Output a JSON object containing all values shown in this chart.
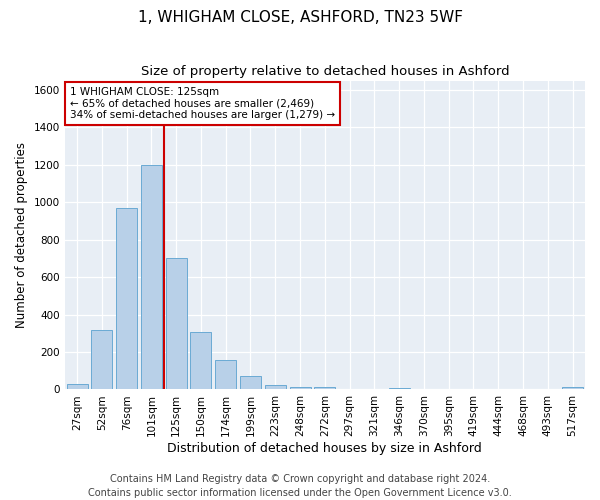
{
  "title": "1, WHIGHAM CLOSE, ASHFORD, TN23 5WF",
  "subtitle": "Size of property relative to detached houses in Ashford",
  "xlabel": "Distribution of detached houses by size in Ashford",
  "ylabel": "Number of detached properties",
  "bar_labels": [
    "27sqm",
    "52sqm",
    "76sqm",
    "101sqm",
    "125sqm",
    "150sqm",
    "174sqm",
    "199sqm",
    "223sqm",
    "248sqm",
    "272sqm",
    "297sqm",
    "321sqm",
    "346sqm",
    "370sqm",
    "395sqm",
    "419sqm",
    "444sqm",
    "468sqm",
    "493sqm",
    "517sqm"
  ],
  "bar_values": [
    30,
    320,
    970,
    1200,
    700,
    305,
    155,
    70,
    25,
    15,
    15,
    0,
    0,
    10,
    0,
    0,
    0,
    0,
    0,
    0,
    12
  ],
  "bar_color": "#b8d0e8",
  "bar_edgecolor": "#6aaad4",
  "vline_color": "#cc0000",
  "ylim": [
    0,
    1650
  ],
  "annotation_text": "1 WHIGHAM CLOSE: 125sqm\n← 65% of detached houses are smaller (2,469)\n34% of semi-detached houses are larger (1,279) →",
  "annotation_box_color": "#cc0000",
  "footer_text": "Contains HM Land Registry data © Crown copyright and database right 2024.\nContains public sector information licensed under the Open Government Licence v3.0.",
  "plot_bg_color": "#e8eef5",
  "title_fontsize": 11,
  "subtitle_fontsize": 9.5,
  "ylabel_fontsize": 8.5,
  "xlabel_fontsize": 9,
  "tick_fontsize": 7.5,
  "footer_fontsize": 7,
  "ann_fontsize": 7.5
}
